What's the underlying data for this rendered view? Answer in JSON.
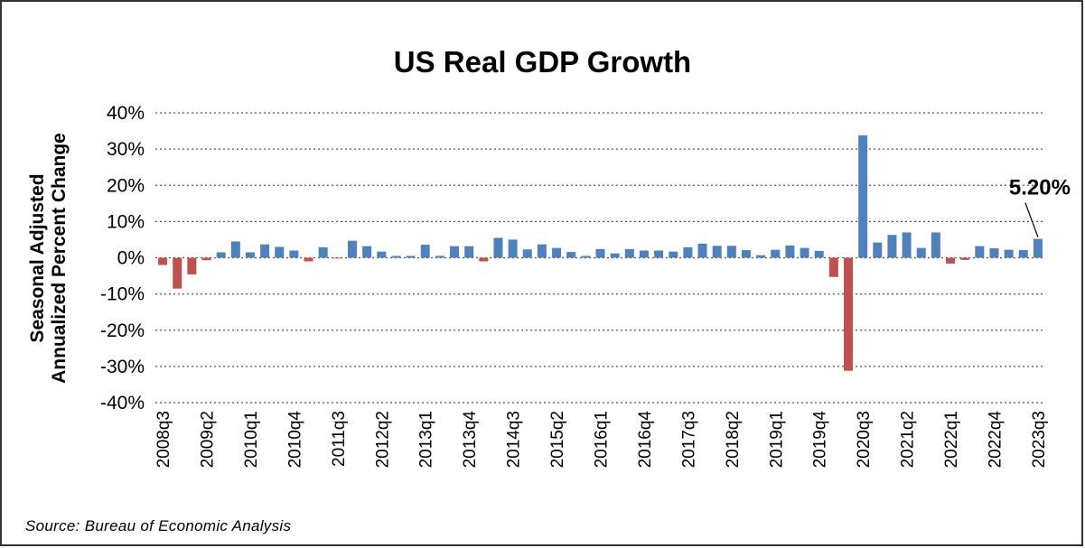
{
  "chart_data": {
    "type": "bar",
    "title": "US Real GDP Growth",
    "ylabel": "Seasonal Adjusted Annualized Percent Change",
    "xlabel": "",
    "ylim": [
      -40,
      40
    ],
    "ytick_labels": [
      "40%",
      "30%",
      "20%",
      "10%",
      "0%",
      "-10%",
      "-20%",
      "-30%",
      "-40%"
    ],
    "ytick_values": [
      40,
      30,
      20,
      10,
      0,
      -10,
      -20,
      -30,
      -40
    ],
    "grid": true,
    "categories": [
      "2008q3",
      "2008q4",
      "2009q1",
      "2009q2",
      "2009q3",
      "2009q4",
      "2010q1",
      "2010q2",
      "2010q3",
      "2010q4",
      "2011q1",
      "2011q2",
      "2011q3",
      "2011q4",
      "2012q1",
      "2012q2",
      "2012q3",
      "2012q4",
      "2013q1",
      "2013q2",
      "2013q3",
      "2013q4",
      "2014q1",
      "2014q2",
      "2014q3",
      "2014q4",
      "2015q1",
      "2015q2",
      "2015q3",
      "2015q4",
      "2016q1",
      "2016q2",
      "2016q3",
      "2016q4",
      "2017q1",
      "2017q2",
      "2017q3",
      "2017q4",
      "2018q1",
      "2018q2",
      "2018q3",
      "2018q4",
      "2019q1",
      "2019q2",
      "2019q3",
      "2019q4",
      "2020q1",
      "2020q2",
      "2020q3",
      "2020q4",
      "2021q1",
      "2021q2",
      "2021q3",
      "2021q4",
      "2022q1",
      "2022q2",
      "2022q3",
      "2022q4",
      "2023q1",
      "2023q2",
      "2023q3"
    ],
    "xtick_labels": [
      "2008q3",
      "2009q2",
      "2010q1",
      "2010q4",
      "2011q3",
      "2012q2",
      "2013q1",
      "2013q4",
      "2014q3",
      "2015q2",
      "2016q1",
      "2016q4",
      "2017q3",
      "2018q2",
      "2019q1",
      "2019q4",
      "2020q3",
      "2021q2",
      "2022q1",
      "2022q4",
      "2023q3"
    ],
    "values": [
      -2.0,
      -8.5,
      -4.6,
      -0.7,
      1.5,
      4.5,
      1.5,
      3.7,
      3.0,
      2.0,
      -1.0,
      2.9,
      -0.1,
      4.7,
      3.2,
      1.7,
      0.5,
      0.5,
      3.6,
      0.5,
      3.2,
      3.2,
      -1.0,
      5.5,
      5.0,
      2.3,
      3.7,
      2.7,
      1.6,
      0.5,
      2.4,
      1.2,
      2.4,
      2.0,
      2.0,
      1.7,
      2.9,
      3.9,
      3.3,
      3.3,
      2.1,
      0.7,
      2.2,
      3.4,
      2.7,
      1.9,
      -5.3,
      -31.2,
      33.8,
      4.2,
      6.3,
      7.0,
      2.7,
      7.0,
      -1.6,
      -0.6,
      3.2,
      2.6,
      2.2,
      2.1,
      5.2
    ],
    "colors": {
      "positive": "#4f81bd",
      "negative": "#c0504d"
    },
    "annotation": {
      "text": "5.20%",
      "category": "2023q3"
    }
  },
  "source": "Source: Bureau of Economic Analysis"
}
